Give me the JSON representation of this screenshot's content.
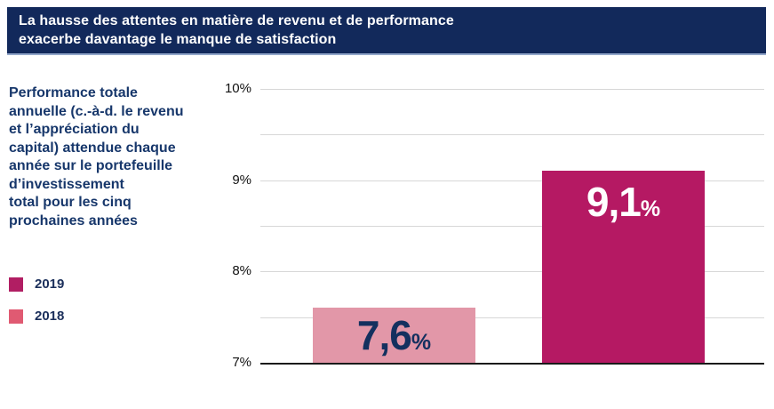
{
  "banner": {
    "line1": "La hausse des attentes en matière de revenu et de performance",
    "line2": "exacerbe davantage le manque de satisfaction",
    "bg_color": "#12295B",
    "text_color": "#FFFFFF",
    "accent_line_color": "#92A7CA"
  },
  "sidebar": {
    "description": "Performance totale\nannuelle (c.-à-d. le revenu\net l’appréciation du\ncapital) attendue chaque\nannée sur le portefeuille\nd’investissement\ntotal pour les cinq\nprochaines années",
    "text_color": "#17376B"
  },
  "legend": {
    "items": [
      {
        "label": "2019",
        "color": "#B11E63"
      },
      {
        "label": "2018",
        "color": "#E05A72"
      }
    ]
  },
  "chart_data": {
    "type": "bar",
    "categories": [
      "2018",
      "2019"
    ],
    "series": [
      {
        "name": "2018",
        "value": 7.6,
        "display_label": "7,6",
        "suffix": "%",
        "bar_color": "#E297A8",
        "label_color": "#14305F"
      },
      {
        "name": "2019",
        "value": 9.1,
        "display_label": "9,1",
        "suffix": "%",
        "bar_color": "#B51963",
        "label_color": "#FFFFFF"
      }
    ],
    "title": "",
    "xlabel": "",
    "ylabel": "",
    "ylim": [
      7,
      10
    ],
    "gridline_step": 0.5,
    "yticks": [
      {
        "label": "10%",
        "value": 10
      },
      {
        "label": "9%",
        "value": 9
      },
      {
        "label": "8%",
        "value": 8
      },
      {
        "label": "7%",
        "value": 7
      }
    ],
    "grid": true,
    "legend_position": "left",
    "gridline_color": "#D7D7D7",
    "axis_color": "#1A1A1A"
  }
}
